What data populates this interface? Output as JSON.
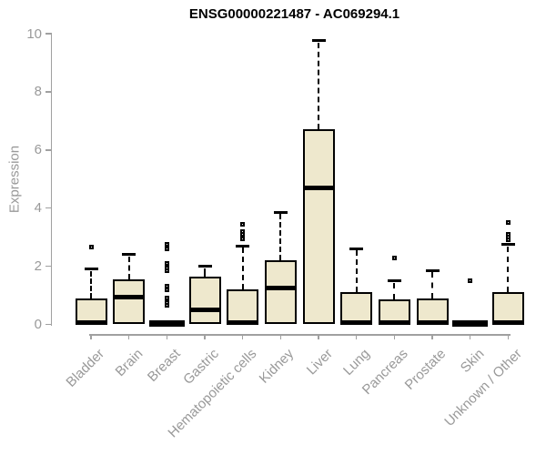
{
  "title": "ENSG00000221487 - AC069294.1",
  "y_axis": {
    "label": "Expression",
    "tick_labels": [
      "0",
      "2",
      "4",
      "6",
      "8",
      "10"
    ]
  },
  "chart_data": {
    "type": "boxplot",
    "title": "ENSG00000221487 - AC069294.1",
    "xlabel": "",
    "ylabel": "Expression",
    "ylim": [
      0,
      10
    ],
    "yticks": [
      0,
      2,
      4,
      6,
      8,
      10
    ],
    "grid": false,
    "legend": "none",
    "categories": [
      "Bladder",
      "Brain",
      "Breast",
      "Gastric",
      "Hematopoietic cells",
      "Kidney",
      "Liver",
      "Lung",
      "Pancreas",
      "Prostate",
      "Skin",
      "Unknown / Other"
    ],
    "series": [
      {
        "name": "Bladder",
        "q1": 0,
        "median": 0.05,
        "q3": 0.9,
        "whisker_low": 0,
        "whisker_high": 1.9,
        "outliers": [
          2.65
        ]
      },
      {
        "name": "Brain",
        "q1": 0,
        "median": 0.95,
        "q3": 1.55,
        "whisker_low": 0,
        "whisker_high": 2.4,
        "outliers": []
      },
      {
        "name": "Breast",
        "q1": 0,
        "median": 0.03,
        "q3": 0.06,
        "whisker_low": 0,
        "whisker_high": 0.06,
        "outliers": [
          0.65,
          0.75,
          0.9,
          1.2,
          1.3,
          1.85,
          1.95,
          2.1,
          2.6,
          2.75
        ]
      },
      {
        "name": "Gastric",
        "q1": 0,
        "median": 0.5,
        "q3": 1.65,
        "whisker_low": 0,
        "whisker_high": 2.0,
        "outliers": []
      },
      {
        "name": "Hematopoietic cells",
        "q1": 0,
        "median": 0.05,
        "q3": 1.2,
        "whisker_low": 0,
        "whisker_high": 2.7,
        "outliers": [
          2.95,
          3.1,
          3.2,
          3.45
        ]
      },
      {
        "name": "Kidney",
        "q1": 0,
        "median": 1.25,
        "q3": 2.2,
        "whisker_low": 0,
        "whisker_high": 3.85,
        "outliers": []
      },
      {
        "name": "Liver",
        "q1": 0,
        "median": 4.7,
        "q3": 6.7,
        "whisker_low": 0,
        "whisker_high": 9.75,
        "outliers": []
      },
      {
        "name": "Lung",
        "q1": 0,
        "median": 0.05,
        "q3": 1.1,
        "whisker_low": 0,
        "whisker_high": 2.6,
        "outliers": []
      },
      {
        "name": "Pancreas",
        "q1": 0,
        "median": 0.05,
        "q3": 0.85,
        "whisker_low": 0,
        "whisker_high": 1.5,
        "outliers": [
          2.3
        ]
      },
      {
        "name": "Prostate",
        "q1": 0,
        "median": 0.05,
        "q3": 0.9,
        "whisker_low": 0,
        "whisker_high": 1.85,
        "outliers": []
      },
      {
        "name": "Skin",
        "q1": 0,
        "median": 0.03,
        "q3": 0.06,
        "whisker_low": 0,
        "whisker_high": 0.06,
        "outliers": [
          1.5
        ]
      },
      {
        "name": "Unknown / Other",
        "q1": 0,
        "median": 0.05,
        "q3": 1.1,
        "whisker_low": 0,
        "whisker_high": 2.75,
        "outliers": [
          2.9,
          3.0,
          3.1,
          3.5
        ]
      }
    ],
    "colors": {
      "box_fill": "#EEE8CD",
      "box_stroke": "#000000",
      "axis": "#A0A0A0",
      "tick_text": "#999999",
      "title_text": "#000000"
    }
  }
}
